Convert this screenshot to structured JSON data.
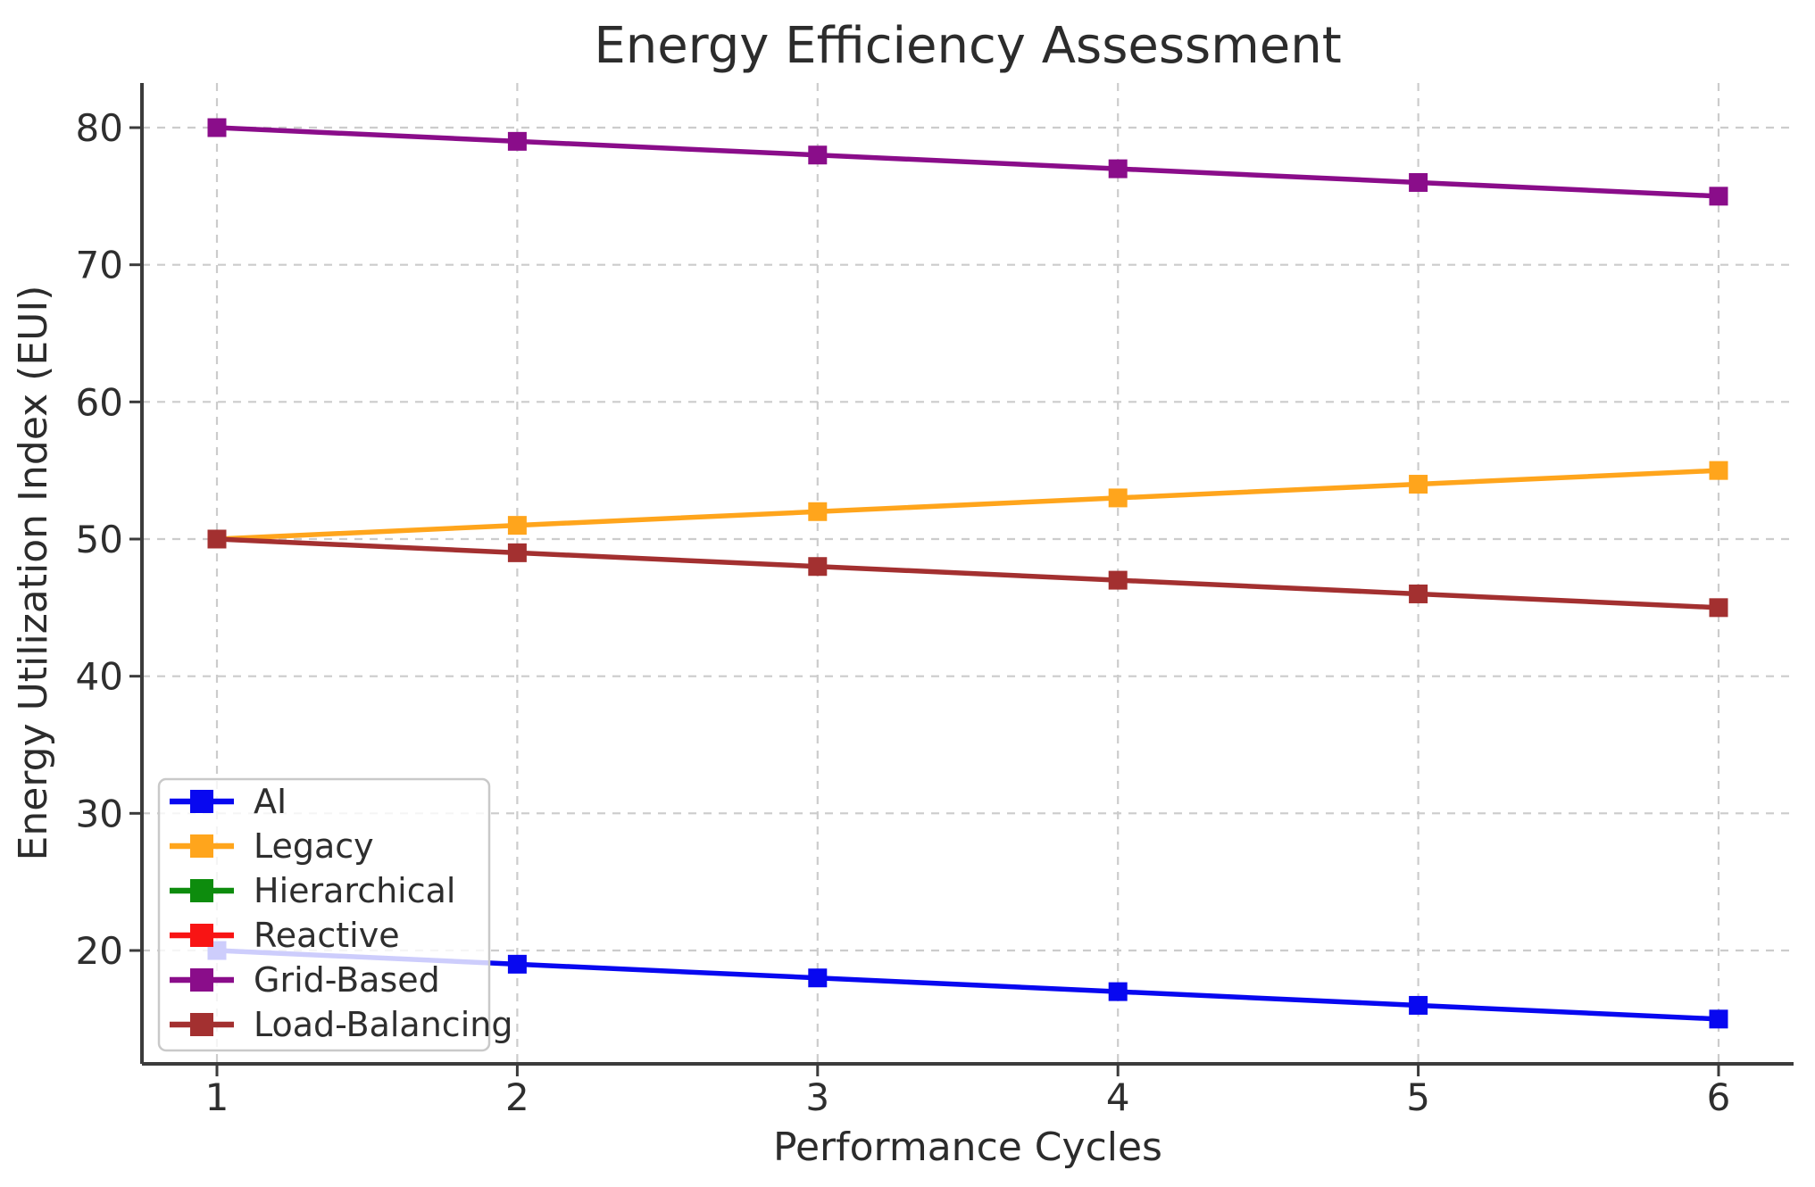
{
  "chart_data": {
    "type": "line",
    "title": "Energy Efficiency Assessment",
    "xlabel": "Performance Cycles",
    "ylabel": "Energy Utilization Index (EUI)",
    "x": [
      1,
      2,
      3,
      4,
      5,
      6
    ],
    "xticks": [
      "1",
      "2",
      "3",
      "4",
      "5",
      "6"
    ],
    "yticks": [
      "20",
      "30",
      "40",
      "50",
      "60",
      "70",
      "80"
    ],
    "xlim": [
      0.75,
      6.25
    ],
    "ylim": [
      11.75,
      83.25
    ],
    "grid": true,
    "grid_color": "#cccccc",
    "grid_style": "dashed",
    "axis_color": "#3b3b3b",
    "text_color": "#2e2e2e",
    "marker": "square",
    "legend": {
      "position": "lower-left",
      "background": "rgba(255,255,255,0.8)",
      "border_color": "#c9c9c9",
      "entries": [
        "AI",
        "Legacy",
        "Hierarchical",
        "Reactive",
        "Grid-Based",
        "Load-Balancing"
      ]
    },
    "series": [
      {
        "name": "AI",
        "color": "#0808f0",
        "values": [
          20,
          19,
          18,
          17,
          16,
          15
        ]
      },
      {
        "name": "Legacy",
        "color": "#ffa51c",
        "values": [
          50,
          51,
          52,
          53,
          54,
          55
        ]
      },
      {
        "name": "Hierarchical",
        "color": "#0d8c0d",
        "values": null
      },
      {
        "name": "Reactive",
        "color": "#f81414",
        "values": null
      },
      {
        "name": "Grid-Based",
        "color": "#8a0d8a",
        "values": [
          80,
          79,
          78,
          77,
          76,
          75
        ]
      },
      {
        "name": "Load-Balancing",
        "color": "#a33030",
        "values": [
          50,
          49,
          48,
          47,
          46,
          45
        ]
      }
    ]
  }
}
